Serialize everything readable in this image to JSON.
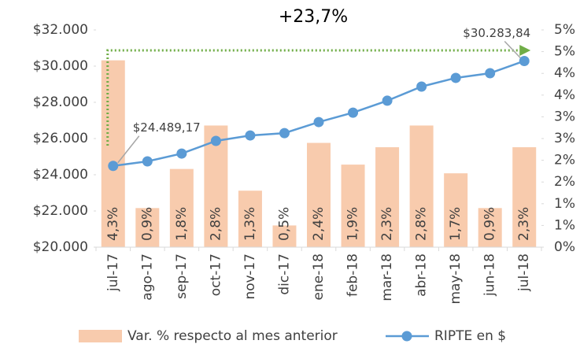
{
  "chart_data": {
    "type": "combo",
    "title": "+23,7%",
    "categories": [
      "jul-17",
      "ago-17",
      "sep-17",
      "oct-17",
      "nov-17",
      "dic-17",
      "ene-18",
      "feb-18",
      "mar-18",
      "abr-18",
      "may-18",
      "jun-18",
      "jul-18"
    ],
    "series": [
      {
        "name": "Var. % respecto al mes anterior",
        "type": "bar",
        "axis": "y2",
        "color": "#f8cbad",
        "values": [
          4.3,
          0.9,
          1.8,
          2.8,
          1.3,
          0.5,
          2.4,
          1.9,
          2.3,
          2.8,
          1.7,
          0.9,
          2.3
        ],
        "value_labels": [
          "4,3%",
          "0,9%",
          "1,8%",
          "2,8%",
          "1,3%",
          "0,5%",
          "2,4%",
          "1,9%",
          "2,3%",
          "2,8%",
          "1,7%",
          "0,9%",
          "2,3%"
        ]
      },
      {
        "name": "RIPTE en $",
        "type": "line",
        "axis": "y",
        "color": "#5b9bd5",
        "values": [
          24489.17,
          24740,
          25170,
          25870,
          26170,
          26300,
          26910,
          27430,
          28090,
          28870,
          29350,
          29610,
          30283.84
        ],
        "value_labels": [
          "$24.489,17",
          null,
          null,
          null,
          null,
          null,
          null,
          null,
          null,
          null,
          null,
          null,
          "$30.283,84"
        ]
      }
    ],
    "ylim": [
      20000,
      32000
    ],
    "yticks": [
      {
        "value": 20000,
        "label": "$20.000"
      },
      {
        "value": 22000,
        "label": "$22.000"
      },
      {
        "value": 24000,
        "label": "$24.000"
      },
      {
        "value": 26000,
        "label": "$26.000"
      },
      {
        "value": 28000,
        "label": "$28.000"
      },
      {
        "value": 30000,
        "label": "$30.000"
      },
      {
        "value": 32000,
        "label": "$32.000"
      }
    ],
    "y2lim": [
      0,
      5
    ],
    "y2ticks": [
      {
        "value": 0,
        "label": "0%"
      },
      {
        "value": 0.5,
        "label": "1%"
      },
      {
        "value": 1,
        "label": "1%"
      },
      {
        "value": 1.5,
        "label": "2%"
      },
      {
        "value": 2,
        "label": "2%"
      },
      {
        "value": 2.5,
        "label": "3%"
      },
      {
        "value": 3,
        "label": "3%"
      },
      {
        "value": 3.5,
        "label": "4%"
      },
      {
        "value": 4,
        "label": "4%"
      },
      {
        "value": 4.5,
        "label": "5%"
      },
      {
        "value": 5,
        "label": "5%"
      }
    ],
    "legend": "bottom"
  }
}
